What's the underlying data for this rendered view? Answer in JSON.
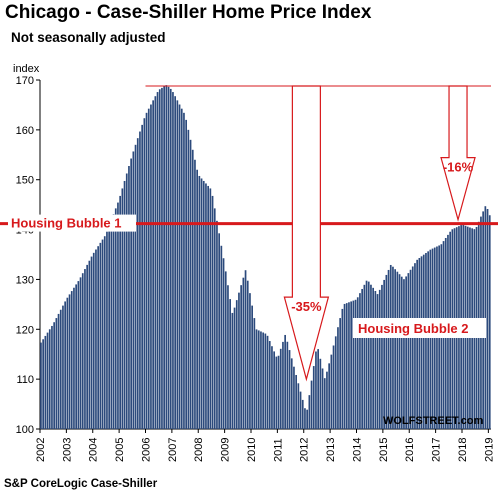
{
  "title": "Chicago - Case-Shiller Home Price Index",
  "subtitle": "Not seasonally adjusted",
  "source": "S&P CoreLogic Case-Shiller",
  "brand": "WOLFSTREET.com",
  "colors": {
    "bars": "#2c4a7c",
    "annotation": "#d7191c",
    "annotation_box_fill": "#ffffff"
  },
  "chart_data": {
    "type": "bar",
    "ylabel": "index",
    "ylim": [
      100,
      170
    ],
    "yticks": [
      100,
      110,
      120,
      130,
      140,
      150,
      160,
      170
    ],
    "xticks": [
      "2002",
      "2003",
      "2004",
      "2005",
      "2006",
      "2007",
      "2008",
      "2009",
      "2010",
      "2011",
      "2012",
      "2013",
      "2014",
      "2015",
      "2016",
      "2017",
      "2018",
      "2019"
    ],
    "x_range": [
      2002,
      2019.1
    ],
    "grid": false,
    "series": [
      {
        "x": [
          2002.0,
          2002.5,
          2003.0,
          2003.5,
          2004.0,
          2004.5,
          2005.0,
          2005.5,
          2006.0,
          2006.5,
          2006.8,
          2007.0,
          2007.5,
          2008.0,
          2008.5,
          2009.0,
          2009.3,
          2009.8,
          2010.2,
          2010.6,
          2011.0,
          2011.3,
          2011.7,
          2012.1,
          2012.5,
          2012.8,
          2013.0,
          2013.5,
          2014.0,
          2014.4,
          2014.8,
          2015.3,
          2015.8,
          2016.3,
          2016.8,
          2017.2,
          2017.6,
          2018.0,
          2018.5,
          2018.9,
          2019.1
        ],
        "values": [
          117,
          121,
          126,
          130,
          135,
          139,
          146,
          155,
          163,
          168,
          169,
          168,
          163,
          151,
          148,
          133,
          123,
          132,
          120,
          119,
          114,
          119,
          111,
          103,
          117,
          110,
          114,
          125,
          126,
          130,
          127,
          133,
          130,
          134,
          136,
          137,
          140,
          141,
          140,
          145,
          142
        ]
      }
    ],
    "annotations": {
      "reference_line": {
        "value": 141.2,
        "label": "Housing Bubble 1"
      },
      "peak_line": {
        "value": 168.8
      },
      "drop_1": {
        "label": "-35%",
        "x": 2012.1,
        "from": 168.8,
        "to": 110
      },
      "drop_2": {
        "label": "-16%",
        "x": 2017.85,
        "from": 168.8,
        "to": 142
      },
      "label_2": "Housing Bubble 2"
    }
  }
}
